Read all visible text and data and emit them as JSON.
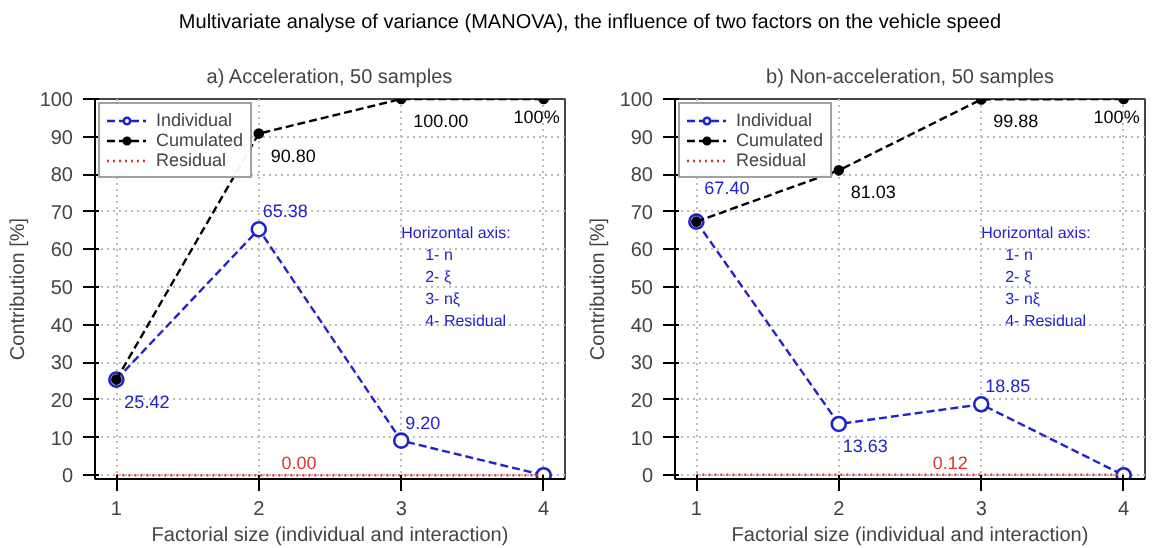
{
  "chart_data": [
    {
      "type": "line",
      "title": "Multivariate analyse of variance (MANOVA), the influence of two factors on the vehicle speed",
      "subtitle": "a) Acceleration, 50 samples",
      "xlabel": "Factorial size (individual and interaction)",
      "ylabel": "Contribution [%]",
      "x": [
        1,
        2,
        3,
        4
      ],
      "xlim": [
        0.85,
        4.15
      ],
      "xticks": [
        1,
        2,
        3,
        4
      ],
      "ylim": [
        -1,
        100
      ],
      "yticks": [
        0,
        10,
        20,
        30,
        40,
        50,
        60,
        70,
        80,
        90,
        100
      ],
      "grid": true,
      "legend": "top left",
      "series": [
        {
          "name": "Individual",
          "color": "#2222cc",
          "values": [
            25.42,
            65.38,
            9.2,
            0
          ],
          "value_labels": [
            "25.42",
            "65.38",
            "9.20",
            null
          ],
          "marker": "circle",
          "line_style": "dashed"
        },
        {
          "name": "Cumulated",
          "color": "#000000",
          "values": [
            25.42,
            90.8,
            100,
            100
          ],
          "value_labels": [
            null,
            "90.80",
            "100.00",
            "100%"
          ],
          "marker": "circle",
          "line_style": "dashed"
        },
        {
          "name": "Residual",
          "color": "#dd3333",
          "x": [
            1,
            2.3,
            4
          ],
          "values": [
            0,
            0,
            0
          ],
          "value_labels": [
            null,
            "0.00",
            null
          ],
          "marker": "none",
          "line_style": "dotted"
        }
      ],
      "annotations": [
        "Horizontal axis:",
        "1- n",
        "2- ξ",
        "3- nξ",
        "4- Residual"
      ]
    },
    {
      "type": "line",
      "subtitle": "b) Non-acceleration, 50 samples",
      "xlabel": "Factorial size (individual and interaction)",
      "ylabel": "Contribution [%]",
      "x": [
        1,
        2,
        3,
        4
      ],
      "xlim": [
        0.85,
        4.15
      ],
      "xticks": [
        1,
        2,
        3,
        4
      ],
      "ylim": [
        -1,
        100
      ],
      "yticks": [
        0,
        10,
        20,
        30,
        40,
        50,
        60,
        70,
        80,
        90,
        100
      ],
      "grid": true,
      "legend": "top left",
      "series": [
        {
          "name": "Individual",
          "color": "#2222cc",
          "values": [
            67.4,
            13.63,
            18.85,
            0
          ],
          "value_labels": [
            "67.40",
            "13.63",
            "18.85",
            null
          ],
          "marker": "circle",
          "line_style": "dashed"
        },
        {
          "name": "Cumulated",
          "color": "#000000",
          "values": [
            67.4,
            81.03,
            99.88,
            100
          ],
          "value_labels": [
            null,
            "81.03",
            "99.88",
            "100%"
          ],
          "marker": "circle",
          "line_style": "dashed"
        },
        {
          "name": "Residual",
          "color": "#dd3333",
          "x": [
            1,
            2.8,
            4
          ],
          "values": [
            0.12,
            0.12,
            0.12
          ],
          "value_labels": [
            null,
            "0.12",
            null
          ],
          "marker": "none",
          "line_style": "dotted"
        }
      ],
      "annotations": [
        "Horizontal axis:",
        "1- n",
        "2- ξ",
        "3- nξ",
        "4- Residual"
      ]
    }
  ]
}
